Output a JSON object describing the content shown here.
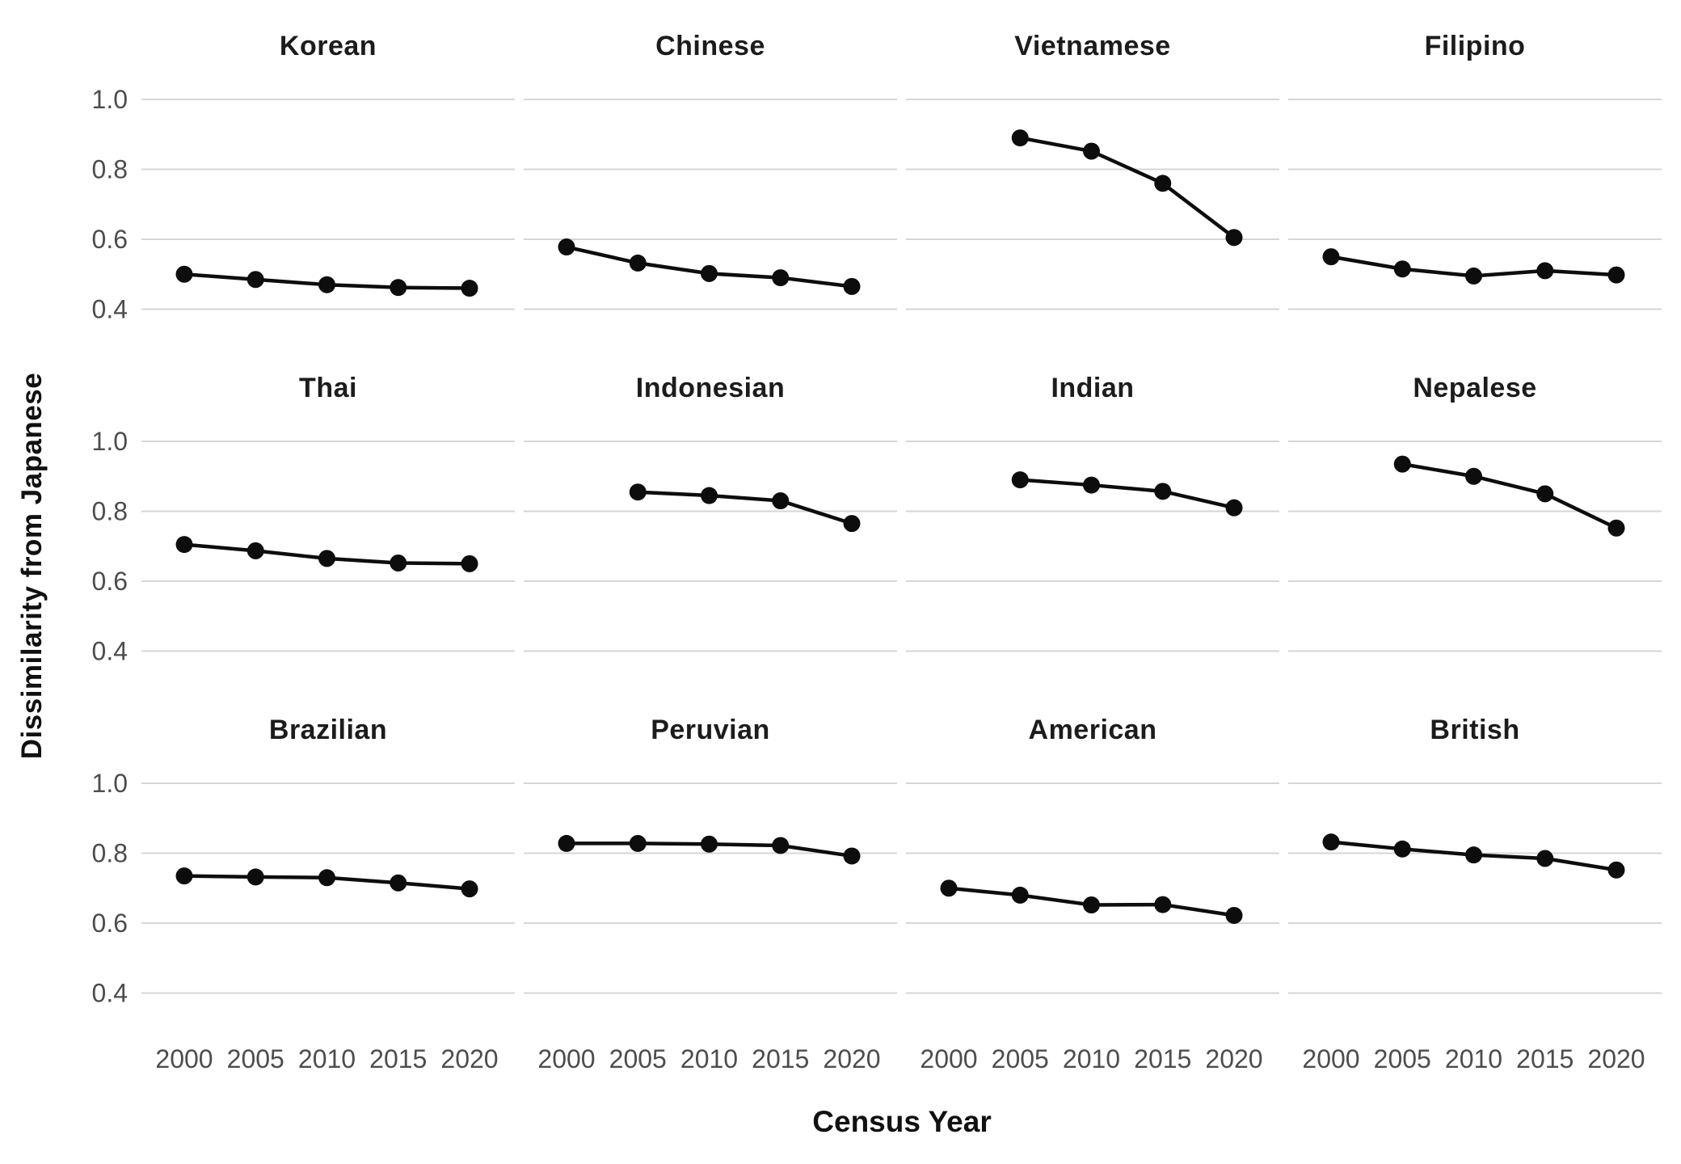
{
  "figure": {
    "y_axis_label": "Dissimilarity from Japanese",
    "x_axis_label": "Census Year"
  },
  "chart_data": {
    "type": "line",
    "layout": "facet_grid_3_rows_x_4_cols",
    "facet_order": [
      "Korean",
      "Chinese",
      "Vietnamese",
      "Filipino",
      "Thai",
      "Indonesian",
      "Indian",
      "Nepalese",
      "Brazilian",
      "Peruvian",
      "American",
      "British"
    ],
    "x": [
      2000,
      2005,
      2010,
      2015,
      2020
    ],
    "x_tick_labels": [
      "2000",
      "2005",
      "2010",
      "2015",
      "2020"
    ],
    "y_ticks": [
      1.0,
      0.8,
      0.6,
      0.4
    ],
    "y_tick_labels": [
      "1.0",
      "0.8",
      "0.6",
      "0.4"
    ],
    "ylim": [
      0.33,
      1.09
    ],
    "grid": "horizontal_gridlines_only",
    "legend": "none",
    "xlabel": "Census Year",
    "ylabel": "Dissimilarity from Japanese",
    "marker": "filled_circle",
    "colors": {
      "line": "#0d0d0d",
      "point": "#0d0d0d",
      "gridline": "#d6d6d6",
      "tick_label": "#4d4d4d",
      "facet_title": "#1c1c1c",
      "background": "#ffffff"
    },
    "series": [
      {
        "name": "Korean",
        "values": [
          0.5,
          0.485,
          0.47,
          0.462,
          0.46
        ]
      },
      {
        "name": "Chinese",
        "values": [
          0.578,
          0.532,
          0.502,
          0.49,
          0.465
        ]
      },
      {
        "name": "Vietnamese",
        "values": [
          null,
          0.89,
          0.852,
          0.76,
          0.605
        ]
      },
      {
        "name": "Filipino",
        "values": [
          0.55,
          0.515,
          0.495,
          0.51,
          0.498
        ]
      },
      {
        "name": "Thai",
        "values": [
          0.705,
          0.687,
          0.665,
          0.652,
          0.65
        ]
      },
      {
        "name": "Indonesian",
        "values": [
          null,
          0.855,
          0.845,
          0.83,
          0.765
        ]
      },
      {
        "name": "Indian",
        "values": [
          null,
          0.89,
          0.875,
          0.857,
          0.81
        ]
      },
      {
        "name": "Nepalese",
        "values": [
          null,
          0.935,
          0.9,
          0.85,
          0.752
        ]
      },
      {
        "name": "Brazilian",
        "values": [
          0.735,
          0.732,
          0.73,
          0.715,
          0.698
        ]
      },
      {
        "name": "Peruvian",
        "values": [
          0.828,
          0.828,
          0.826,
          0.822,
          0.792
        ]
      },
      {
        "name": "American",
        "values": [
          0.7,
          0.68,
          0.652,
          0.653,
          0.622
        ]
      },
      {
        "name": "British",
        "values": [
          0.832,
          0.812,
          0.795,
          0.785,
          0.752
        ]
      }
    ]
  }
}
